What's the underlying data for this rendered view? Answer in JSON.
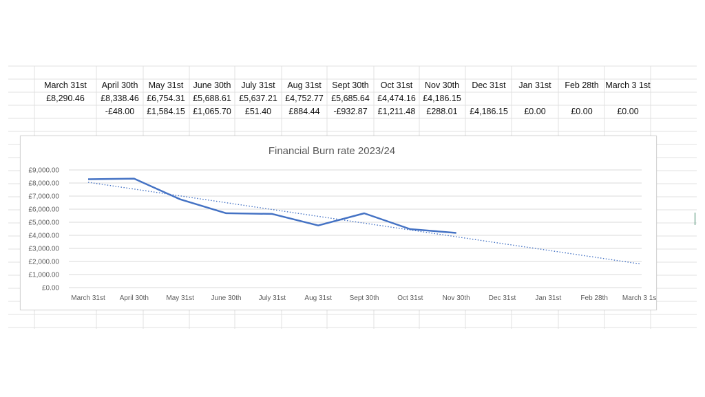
{
  "sheet": {
    "header_row": [
      "March 31st",
      "April 30th",
      "May 31st",
      "June 30th",
      "July 31st",
      "Aug 31st",
      "Sept 30th",
      "Oct 31st",
      "Nov 30th",
      "Dec 31st",
      "Jan 31st",
      "Feb 28th",
      "March 3 1st"
    ],
    "balance_row": [
      "£8,290.46",
      "£8,338.46",
      "£6,754.31",
      "£5,688.61",
      "£5,637.21",
      "£4,752.77",
      "£5,685.64",
      "£4,474.16",
      "£4,186.15",
      "",
      "",
      "",
      ""
    ],
    "change_row": [
      "",
      "-£48.00",
      "£1,584.15",
      "£1,065.70",
      "£51.40",
      "£884.44",
      "-£932.87",
      "£1,211.48",
      "£288.01",
      "£4,186.15",
      "£0.00",
      "£0.00",
      "£0.00"
    ]
  },
  "chart_data": {
    "type": "line",
    "title": "Financial Burn rate 2023/24",
    "categories": [
      "March 31st",
      "April 30th",
      "May 31st",
      "June 30th",
      "July 31st",
      "Aug 31st",
      "Sept 30th",
      "Oct 31st",
      "Nov 30th",
      "Dec 31st",
      "Jan 31st",
      "Feb 28th",
      "March 3 1st"
    ],
    "series": [
      {
        "values": [
          8290.46,
          8338.46,
          6754.31,
          5688.61,
          5637.21,
          4752.77,
          5685.64,
          4474.16,
          4186.15,
          null,
          null,
          null,
          null
        ],
        "color": "#4472c4",
        "style": "solid"
      },
      {
        "trendline": "linear",
        "values": [
          8060,
          7539,
          7018,
          6497,
          5976,
          5455,
          4934,
          4413,
          3892,
          3371,
          2850,
          2329,
          1808
        ],
        "color": "#4472c4",
        "style": "dotted"
      }
    ],
    "y_ticks": [
      "£0.00",
      "£1,000.00",
      "£2,000.00",
      "£3,000.00",
      "£4,000.00",
      "£5,000.00",
      "£6,000.00",
      "£7,000.00",
      "£8,000.00",
      "£9,000.00"
    ],
    "ylim": [
      0,
      9000
    ],
    "grid": true,
    "legend": "none"
  }
}
